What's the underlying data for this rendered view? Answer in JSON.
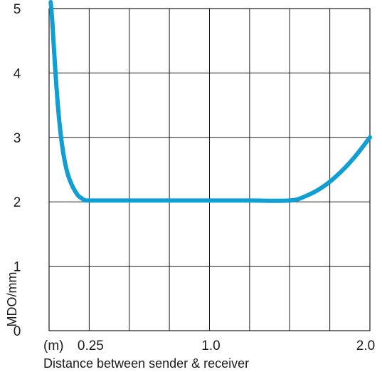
{
  "chart_data": {
    "type": "line",
    "title": "",
    "xlabel": "Distance between sender & receiver",
    "ylabel": "MDO/mm",
    "x_unit_label": "(m)",
    "xlim": [
      0,
      2.0
    ],
    "ylim": [
      0,
      5
    ],
    "x_tick_labels": [
      {
        "value": 0.25,
        "label": "0.25"
      },
      {
        "value": 1.0,
        "label": "1.0"
      },
      {
        "value": 2.0,
        "label": "2.0"
      }
    ],
    "y_tick_labels": [
      {
        "value": 0,
        "label": "0"
      },
      {
        "value": 1,
        "label": "1"
      },
      {
        "value": 2,
        "label": "2"
      },
      {
        "value": 3,
        "label": "3"
      },
      {
        "value": 4,
        "label": "4"
      },
      {
        "value": 5,
        "label": "5"
      }
    ],
    "x_gridlines": [
      0,
      0.25,
      0.5,
      0.75,
      1.0,
      1.25,
      1.5,
      1.75,
      2.0
    ],
    "y_gridlines": [
      0,
      1,
      2,
      3,
      4,
      5
    ],
    "grid": true,
    "series": [
      {
        "color": "#0f9fd4",
        "x": [
          0.01,
          0.02,
          0.04,
          0.06,
          0.08,
          0.1,
          0.12,
          0.15,
          0.18,
          0.2,
          0.22,
          0.25,
          0.5,
          0.75,
          1.0,
          1.25,
          1.5,
          1.6,
          1.7,
          1.8,
          1.9,
          2.0
        ],
        "y": [
          5.1,
          4.8,
          4.0,
          3.35,
          2.9,
          2.6,
          2.4,
          2.22,
          2.1,
          2.06,
          2.03,
          2.02,
          2.02,
          2.02,
          2.02,
          2.02,
          2.02,
          2.09,
          2.22,
          2.42,
          2.68,
          3.0
        ]
      }
    ]
  }
}
